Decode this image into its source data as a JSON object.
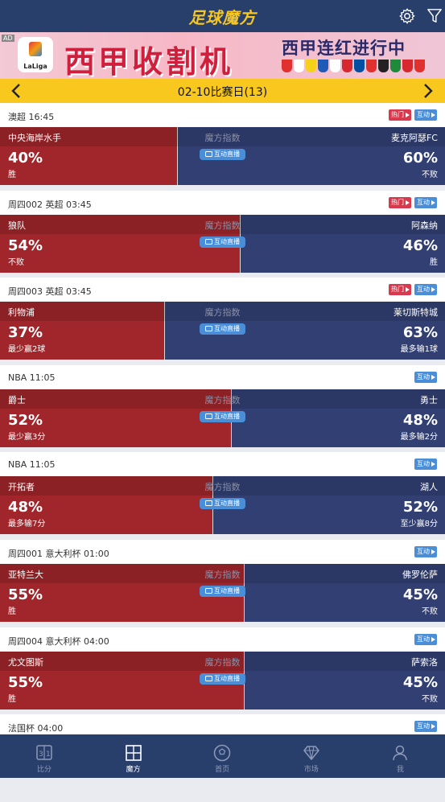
{
  "app": {
    "title": "足球魔方"
  },
  "banner": {
    "ad": "AD",
    "brand": "LaLiga",
    "headline": "西甲收割机",
    "sub": "西甲连红进行中",
    "badge_colors": [
      "#e1312f",
      "#ffffff",
      "#f4d21a",
      "#1e5bb8",
      "#ffffff",
      "#d7282f",
      "#004fa3",
      "#e1312f",
      "#222222",
      "#1f8a3c",
      "#d7282f",
      "#e1312f"
    ]
  },
  "datebar": {
    "label": "02-10比赛日(13)"
  },
  "labels": {
    "index": "魔方指数",
    "live": "互动直播",
    "hot": "热门",
    "interact": "互动"
  },
  "matches": [
    {
      "league": "澳超  16:45",
      "hot": true,
      "home": "中央海岸水手",
      "away": "麦克阿瑟FC",
      "home_pct_value": 40,
      "home_pct": "40%",
      "away_pct": "60%",
      "home_note": "胜",
      "away_note": "不败"
    },
    {
      "league": "周四002  英超  03:45",
      "hot": true,
      "home": "狼队",
      "away": "阿森纳",
      "home_pct_value": 54,
      "home_pct": "54%",
      "away_pct": "46%",
      "home_note": "不败",
      "away_note": "胜"
    },
    {
      "league": "周四003  英超  03:45",
      "hot": true,
      "home": "利物浦",
      "away": "莱切斯特城",
      "home_pct_value": 37,
      "home_pct": "37%",
      "away_pct": "63%",
      "home_note": "最少赢2球",
      "away_note": "最多输1球"
    },
    {
      "league": "NBA  11:05",
      "hot": false,
      "home": "爵士",
      "away": "勇士",
      "home_pct_value": 52,
      "home_pct": "52%",
      "away_pct": "48%",
      "home_note": "最少赢3分",
      "away_note": "最多输2分"
    },
    {
      "league": "NBA  11:05",
      "hot": false,
      "home": "开拓者",
      "away": "湖人",
      "home_pct_value": 48,
      "home_pct": "48%",
      "away_pct": "52%",
      "home_note": "最多输7分",
      "away_note": "至少赢8分"
    },
    {
      "league": "周四001  意大利杯  01:00",
      "hot": false,
      "home": "亚特兰大",
      "away": "佛罗伦萨",
      "home_pct_value": 55,
      "home_pct": "55%",
      "away_pct": "45%",
      "home_note": "胜",
      "away_note": "不败"
    },
    {
      "league": "周四004  意大利杯  04:00",
      "hot": false,
      "home": "尤文图斯",
      "away": "萨索洛",
      "home_pct_value": 55,
      "home_pct": "55%",
      "away_pct": "45%",
      "home_note": "胜",
      "away_note": "不败"
    }
  ],
  "partial_match": {
    "league": "法国杯  04:00"
  },
  "tabs": [
    {
      "label": "比分",
      "icon": "scoreboard-icon",
      "active": false
    },
    {
      "label": "魔方",
      "icon": "cube-grid-icon",
      "active": true
    },
    {
      "label": "首页",
      "icon": "football-icon",
      "active": false
    },
    {
      "label": "市场",
      "icon": "diamond-icon",
      "active": false
    },
    {
      "label": "我",
      "icon": "user-icon",
      "active": false
    }
  ]
}
